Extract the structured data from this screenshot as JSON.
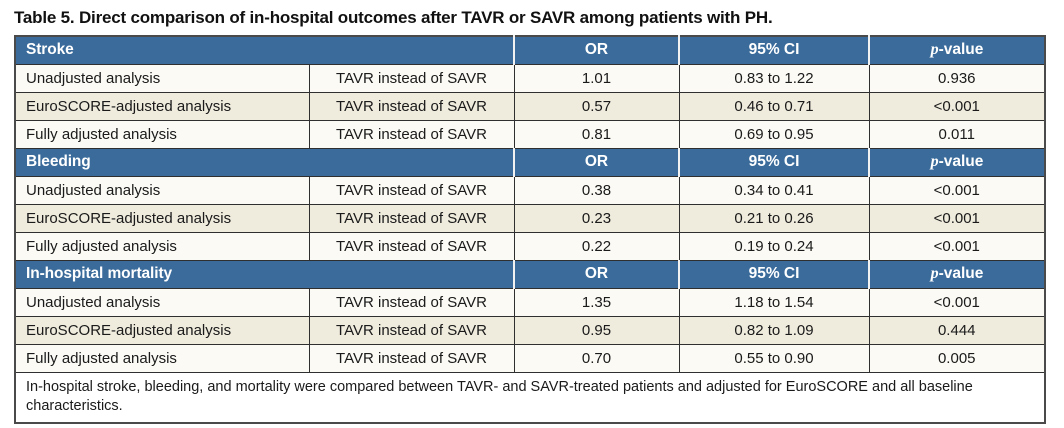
{
  "title": "Table 5. Direct comparison of in-hospital outcomes after TAVR or SAVR among patients with PH.",
  "columns": {
    "or": "OR",
    "ci": "95% CI",
    "p_italic": "p",
    "p_rest": "-value"
  },
  "sections": [
    {
      "label": "Stroke",
      "rows": [
        {
          "analysis": "Unadjusted analysis",
          "comparison": "TAVR instead of SAVR",
          "or": "1.01",
          "ci": "0.83 to 1.22",
          "p": "0.936"
        },
        {
          "analysis": "EuroSCORE-adjusted analysis",
          "comparison": "TAVR instead of SAVR",
          "or": "0.57",
          "ci": "0.46 to 0.71",
          "p": "<0.001"
        },
        {
          "analysis": "Fully adjusted analysis",
          "comparison": "TAVR instead of SAVR",
          "or": "0.81",
          "ci": "0.69 to 0.95",
          "p": "0.011"
        }
      ]
    },
    {
      "label": "Bleeding",
      "rows": [
        {
          "analysis": "Unadjusted analysis",
          "comparison": "TAVR instead of SAVR",
          "or": "0.38",
          "ci": "0.34 to 0.41",
          "p": "<0.001"
        },
        {
          "analysis": "EuroSCORE-adjusted analysis",
          "comparison": "TAVR instead of SAVR",
          "or": "0.23",
          "ci": "0.21 to 0.26",
          "p": "<0.001"
        },
        {
          "analysis": "Fully adjusted analysis",
          "comparison": "TAVR instead of SAVR",
          "or": "0.22",
          "ci": "0.19 to 0.24",
          "p": "<0.001"
        }
      ]
    },
    {
      "label": "In-hospital mortality",
      "rows": [
        {
          "analysis": "Unadjusted analysis",
          "comparison": "TAVR instead of SAVR",
          "or": "1.35",
          "ci": "1.18 to 1.54",
          "p": "<0.001"
        },
        {
          "analysis": "EuroSCORE-adjusted analysis",
          "comparison": "TAVR instead of SAVR",
          "or": "0.95",
          "ci": "0.82 to 1.09",
          "p": "0.444"
        },
        {
          "analysis": "Fully adjusted analysis",
          "comparison": "TAVR instead of SAVR",
          "or": "0.70",
          "ci": "0.55 to 0.90",
          "p": "0.005"
        }
      ]
    }
  ],
  "footnote": "In-hospital stroke, bleeding, and mortality were compared between TAVR- and SAVR-treated patients and adjusted for EuroSCORE and all baseline characteristics.",
  "colors": {
    "header_bg": "#3a6b9b",
    "row_light": "#fbfaf5",
    "row_beige": "#efebdd",
    "border_outer": "#4a4a4a",
    "border_inner": "#2f2f2f",
    "header_text": "#ffffff"
  }
}
